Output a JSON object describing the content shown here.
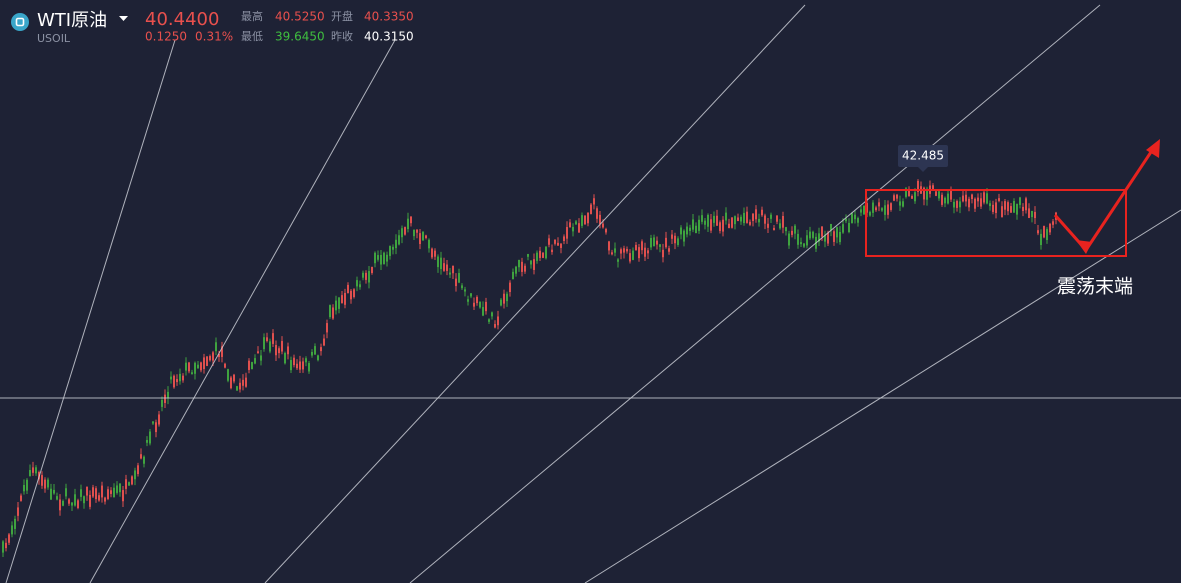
{
  "header": {
    "symbol": "WTI原油",
    "code": "USOIL",
    "price": "40.4400",
    "change": "0.1250",
    "change_pct": "0.31%",
    "stats": [
      {
        "label": "最高",
        "value": "40.5250"
      },
      {
        "label": "开盘",
        "value": "40.3350"
      },
      {
        "label": "最低",
        "value": "39.6450"
      },
      {
        "label": "昨收",
        "value": "40.3150"
      }
    ]
  },
  "chart": {
    "price_tag": "42.485",
    "note": "震荡末端"
  }
}
